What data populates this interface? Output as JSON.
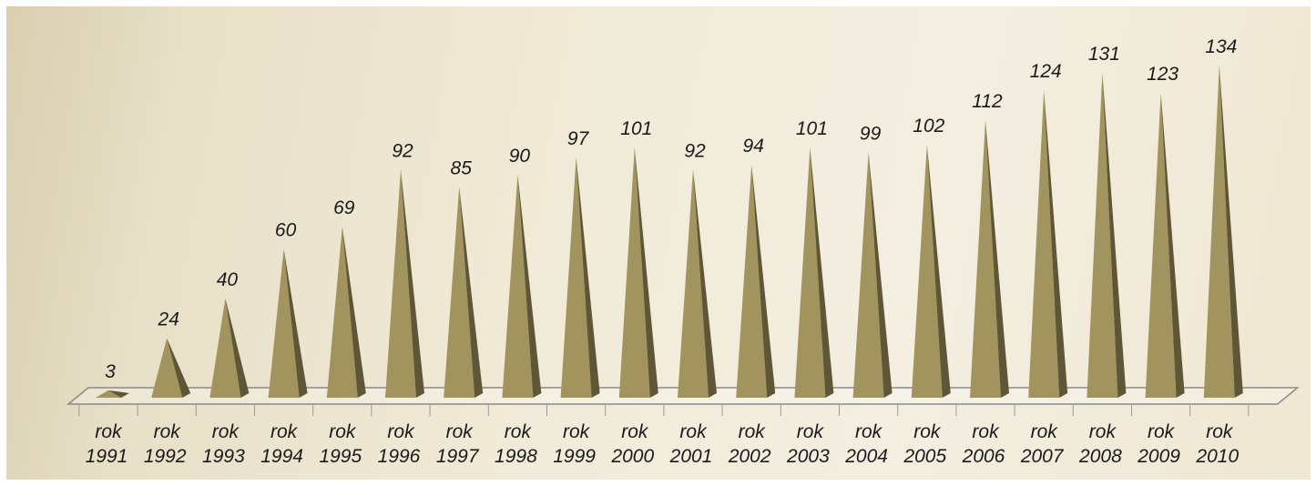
{
  "chart_data": {
    "type": "bar",
    "bar_shape": "pyramid",
    "categories": [
      [
        "rok",
        "1991"
      ],
      [
        "rok",
        "1992"
      ],
      [
        "rok",
        "1993"
      ],
      [
        "rok",
        "1994"
      ],
      [
        "rok",
        "1995"
      ],
      [
        "rok",
        "1996"
      ],
      [
        "rok",
        "1997"
      ],
      [
        "rok",
        "1998"
      ],
      [
        "rok",
        "1999"
      ],
      [
        "rok",
        "2000"
      ],
      [
        "rok",
        "2001"
      ],
      [
        "rok",
        "2002"
      ],
      [
        "rok",
        "2003"
      ],
      [
        "rok",
        "2004"
      ],
      [
        "rok",
        "2005"
      ],
      [
        "rok",
        "2006"
      ],
      [
        "rok",
        "2007"
      ],
      [
        "rok",
        "2008"
      ],
      [
        "rok",
        "2009"
      ],
      [
        "rok",
        "2010"
      ]
    ],
    "values": [
      3,
      24,
      40,
      60,
      69,
      92,
      85,
      90,
      97,
      101,
      92,
      94,
      101,
      99,
      102,
      112,
      124,
      131,
      123,
      134
    ],
    "data_labels": [
      "3",
      "24",
      "40",
      "60",
      "69",
      "92",
      "85",
      "90",
      "97",
      "101",
      "92",
      "94",
      "101",
      "99",
      "102",
      "112",
      "124",
      "131",
      "123",
      "134"
    ],
    "title": "",
    "xlabel": "",
    "ylabel": "",
    "ylim": [
      0,
      134
    ],
    "grid": false,
    "legend": "none",
    "colors": {
      "bar_front": "#a2945e",
      "bar_side": "#5f5637",
      "floor_stroke": "#8a8a8a",
      "label": "#1a1a1a"
    }
  }
}
